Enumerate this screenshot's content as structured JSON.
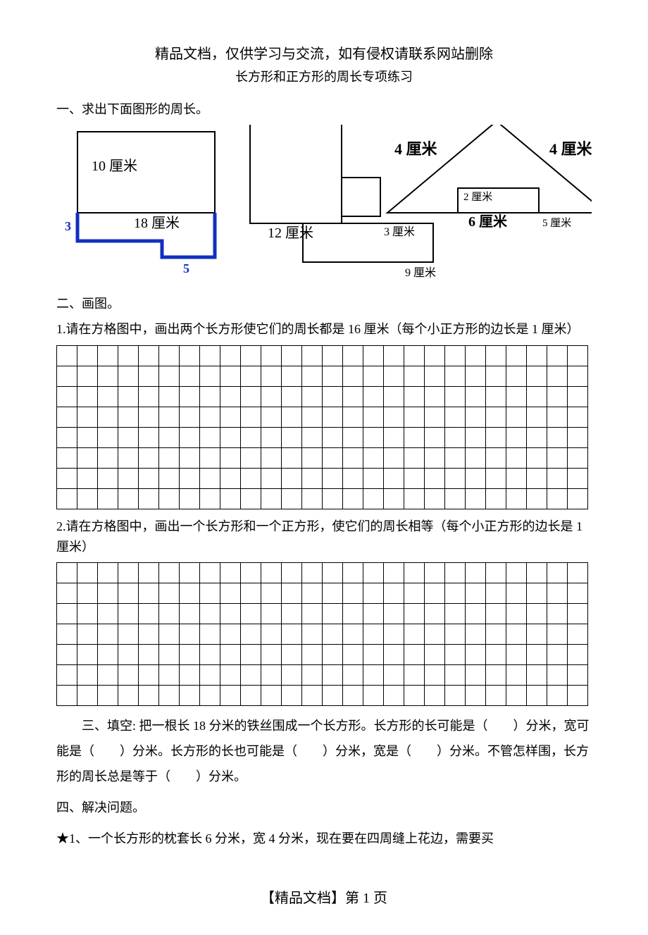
{
  "disclaimer": "精品文档，仅供学习与交流，如有侵权请联系网站删除",
  "title": "长方形和正方形的周长专项练习",
  "section1": {
    "heading": "一、求出下面图形的周长。",
    "fig1": {
      "h": "10 厘米",
      "w": "18 厘米",
      "notch_h": "3",
      "notch_w": "5"
    },
    "fig2": {
      "side": "12 厘米",
      "small_w": "3 厘米",
      "bottom": "9 厘米"
    },
    "fig3": {
      "left": "4 厘米",
      "right": "4 厘米",
      "base": "6 厘米",
      "small_top": "2 厘米",
      "small_side": "5 厘米"
    }
  },
  "section2": {
    "heading": "二、画图。",
    "q1": "1.请在方格图中，画出两个长方形使它们的周长都是 16 厘米（每个小正方形的边长是 1 厘米）",
    "q2": "2.请在方格图中，画出一个长方形和一个正方形，使它们的周长相等（每个小正方形的边长是 1 厘米）",
    "grid1": {
      "rows": 8,
      "cols": 26
    },
    "grid2": {
      "rows": 7,
      "cols": 26
    }
  },
  "section3": {
    "heading_prefix": "三、填空:",
    "text": " 把一根长 18 分米的铁丝围成一个长方形。长方形的长可能是（　　）分米，宽可能是（　　）分米。长方形的长也可能是（　　）分米，宽是（　　）分米。不管怎样围，长方形的周长总是等于（　　）分米。"
  },
  "section4": {
    "heading": "四、解决问题。",
    "q1": "★1、一个长方形的枕套长 6 分米，宽 4 分米，现在要在四周缝上花边，需要买"
  },
  "footer": "【精品文档】第 1 页",
  "colors": {
    "ink": "#000000",
    "accent_blue": "#1030c0"
  }
}
